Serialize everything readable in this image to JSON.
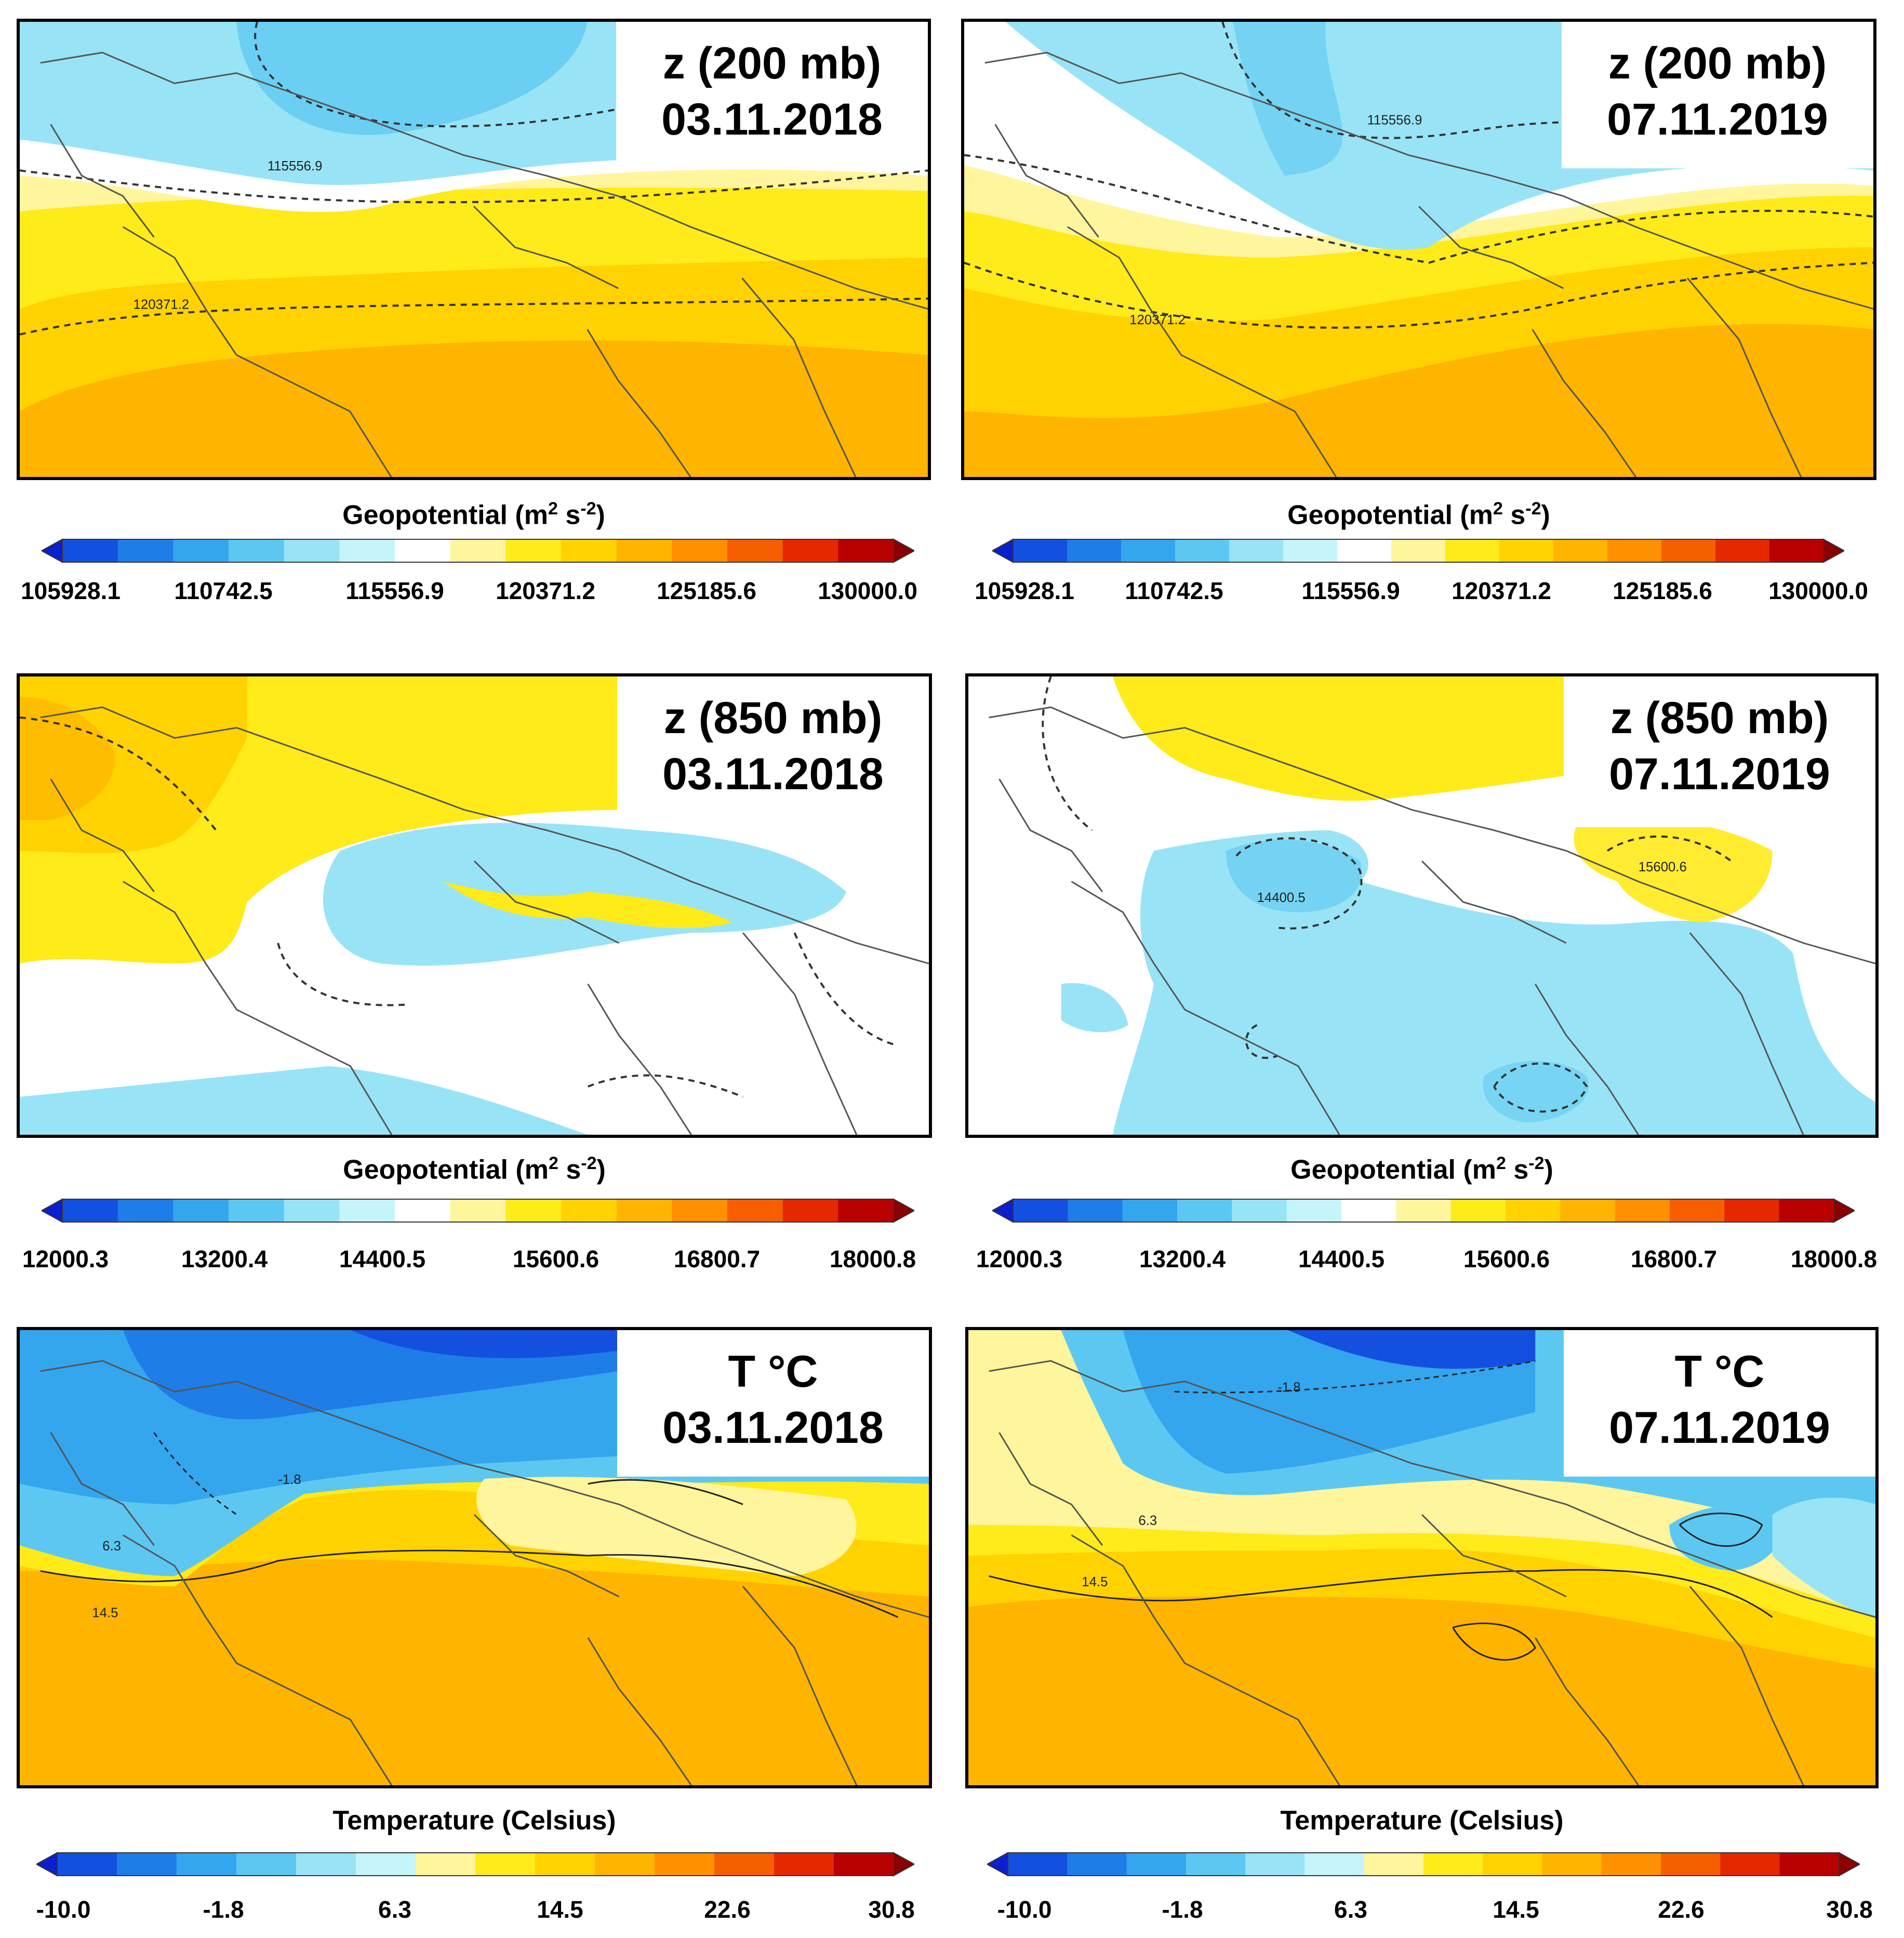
{
  "panels": [
    {
      "id": "p1",
      "variable": "z (200 mb)",
      "date": "03.11.2018",
      "colorbar_title": "Geopotential",
      "unit": "(m",
      "unit_sup": "2",
      "unit_mid": " s",
      "unit_sup2": "-2",
      "unit_end": ")",
      "ticks": [
        "105928.1",
        "110742.5",
        "115556.9",
        "120371.2",
        "125185.6",
        "130000.0"
      ],
      "contour_labels": [
        "115556.9",
        "120371.2"
      ]
    },
    {
      "id": "p2",
      "variable": "z (200 mb)",
      "date": "07.11.2019",
      "colorbar_title": "Geopotential",
      "unit": "(m",
      "unit_sup": "2",
      "unit_mid": " s",
      "unit_sup2": "-2",
      "unit_end": ")",
      "ticks": [
        "105928.1",
        "110742.5",
        "115556.9",
        "120371.2",
        "125185.6",
        "130000.0"
      ],
      "contour_labels": [
        "115556.9",
        "120371.2"
      ]
    },
    {
      "id": "p3",
      "variable": "z (850 mb)",
      "date": "03.11.2018",
      "colorbar_title": "Geopotential",
      "unit": "(m",
      "unit_sup": "2",
      "unit_mid": " s",
      "unit_sup2": "-2",
      "unit_end": ")",
      "ticks": [
        "12000.3",
        "13200.4",
        "14400.5",
        "15600.6",
        "16800.7",
        "18000.8"
      ],
      "contour_labels": []
    },
    {
      "id": "p4",
      "variable": "z (850 mb)",
      "date": "07.11.2019",
      "colorbar_title": "Geopotential",
      "unit": "(m",
      "unit_sup": "2",
      "unit_mid": " s",
      "unit_sup2": "-2",
      "unit_end": ")",
      "ticks": [
        "12000.3",
        "13200.4",
        "14400.5",
        "15600.6",
        "16800.7",
        "18000.8"
      ],
      "contour_labels": [
        "14400.5",
        "15600.6"
      ]
    },
    {
      "id": "p5",
      "variable": "T °C",
      "date": "03.11.2018",
      "colorbar_title": "Temperature (Celsius)",
      "unit": "",
      "unit_sup": "",
      "unit_mid": "",
      "unit_sup2": "",
      "unit_end": "",
      "ticks": [
        "-10.0",
        "-1.8",
        "6.3",
        "14.5",
        "22.6",
        "30.8"
      ],
      "contour_labels": [
        "-1.8",
        "6.3",
        "14.5"
      ]
    },
    {
      "id": "p6",
      "variable": "T °C",
      "date": "07.11.2019",
      "colorbar_title": "Temperature (Celsius)",
      "unit": "",
      "unit_sup": "",
      "unit_mid": "",
      "unit_sup2": "",
      "unit_end": "",
      "ticks": [
        "-10.0",
        "-1.8",
        "6.3",
        "14.5",
        "22.6",
        "30.8"
      ],
      "contour_labels": [
        "-1.8",
        "6.3",
        "14.5"
      ]
    }
  ],
  "colors": {
    "geo_palette": [
      "#0a1fd0",
      "#1450e0",
      "#1f7de8",
      "#34a6ee",
      "#5cc8f2",
      "#98e4f6",
      "#c6f4fb",
      "#ffffff",
      "#fff59c",
      "#ffea1a",
      "#ffd200",
      "#ffb400",
      "#ff9000",
      "#f55f00",
      "#e52800",
      "#b80000",
      "#8a0000"
    ],
    "temp_palette": [
      "#0a1fd0",
      "#1450e0",
      "#1f7de8",
      "#34a6ee",
      "#5cc8f2",
      "#98e4f6",
      "#c6f4fb",
      "#fff59c",
      "#ffea1a",
      "#ffd200",
      "#ffb400",
      "#ff9000",
      "#f55f00",
      "#e52800",
      "#b80000",
      "#8a0000"
    ],
    "land_line": "#555555",
    "contour_line": "#333333"
  }
}
